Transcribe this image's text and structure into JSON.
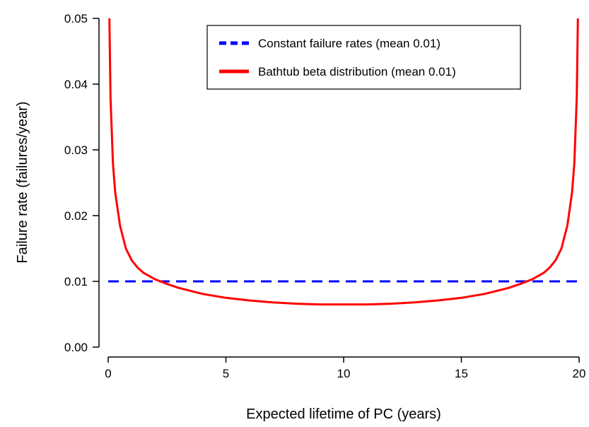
{
  "chart_data": {
    "type": "line",
    "title": "",
    "xlabel": "Expected lifetime of PC (years)",
    "ylabel": "Failure rate (failures/year)",
    "xlim": [
      0,
      20
    ],
    "ylim": [
      0,
      0.05
    ],
    "x_ticks": [
      0,
      5,
      10,
      15,
      20
    ],
    "x_tick_labels": [
      "0",
      "5",
      "10",
      "15",
      "20"
    ],
    "y_ticks": [
      0,
      0.01,
      0.02,
      0.03,
      0.04,
      0.05
    ],
    "y_tick_labels": [
      "0.00",
      "0.01",
      "0.02",
      "0.03",
      "0.04",
      "0.05"
    ],
    "grid": false,
    "legend_position": "top-right",
    "series": [
      {
        "name": "Constant failure rates (mean 0.01)",
        "color": "#0000ff",
        "style": "dashed",
        "x": [
          0,
          20
        ],
        "y": [
          0.01,
          0.01
        ]
      },
      {
        "name": "Bathtub beta distribution (mean 0.01)",
        "color": "#ff0000",
        "style": "solid",
        "x": [
          0.05,
          0.1,
          0.2,
          0.3,
          0.5,
          0.75,
          1,
          1.25,
          1.5,
          2,
          2.5,
          3,
          4,
          5,
          6,
          7,
          8,
          9,
          10,
          11,
          12,
          13,
          14,
          15,
          16,
          17,
          17.5,
          18,
          18.5,
          18.75,
          19,
          19.25,
          19.5,
          19.7,
          19.8,
          19.9,
          19.95
        ],
        "y": [
          0.05,
          0.038,
          0.028,
          0.0235,
          0.0185,
          0.015,
          0.0132,
          0.0121,
          0.0113,
          0.0103,
          0.0096,
          0.009,
          0.0081,
          0.0075,
          0.0071,
          0.0068,
          0.0066,
          0.0065,
          0.0065,
          0.0065,
          0.0066,
          0.0068,
          0.0071,
          0.0075,
          0.0081,
          0.009,
          0.0096,
          0.0103,
          0.0113,
          0.0121,
          0.0132,
          0.015,
          0.0185,
          0.0235,
          0.028,
          0.038,
          0.05
        ]
      }
    ]
  }
}
